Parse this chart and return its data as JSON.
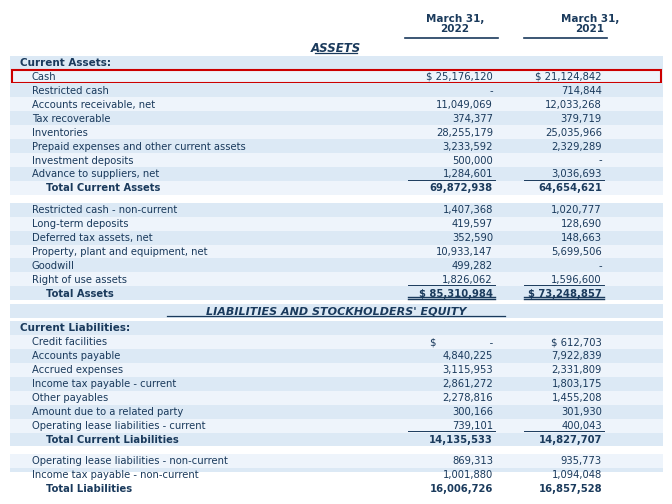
{
  "title_assets": "ASSETS",
  "title_liabilities": "LIABILITIES AND STOCKHOLDERS' EQUITY",
  "col_headers": [
    "March 31,\n2022",
    "March 31,\n2021"
  ],
  "text_color": "#1a3a5c",
  "cash_box_color": "#cc0000",
  "bg_light": "#dce9f5",
  "bg_white": "#eef4fb",
  "sections": [
    {
      "section_label": "Current Assets:",
      "rows": [
        {
          "label": "Cash",
          "v2022": "$ 25,176,120",
          "v2021": "$ 21,124,842",
          "highlight": true
        },
        {
          "label": "Restricted cash",
          "v2022": "-",
          "v2021": "714,844"
        },
        {
          "label": "Accounts receivable, net",
          "v2022": "11,049,069",
          "v2021": "12,033,268"
        },
        {
          "label": "Tax recoverable",
          "v2022": "374,377",
          "v2021": "379,719"
        },
        {
          "label": "Inventories",
          "v2022": "28,255,179",
          "v2021": "25,035,966"
        },
        {
          "label": "Prepaid expenses and other current assets",
          "v2022": "3,233,592",
          "v2021": "2,329,289"
        },
        {
          "label": "Investment deposits",
          "v2022": "500,000",
          "v2021": "-"
        },
        {
          "label": "Advance to suppliers, net",
          "v2022": "1,284,601",
          "v2021": "3,036,693",
          "underline": true
        },
        {
          "label": "    Total Current Assets",
          "v2022": "69,872,938",
          "v2021": "64,654,621",
          "bold": true
        }
      ]
    },
    {
      "section_label": "",
      "rows": [
        {
          "label": "Restricted cash - non-current",
          "v2022": "1,407,368",
          "v2021": "1,020,777"
        },
        {
          "label": "Long-term deposits",
          "v2022": "419,597",
          "v2021": "128,690"
        },
        {
          "label": "Deferred tax assets, net",
          "v2022": "352,590",
          "v2021": "148,663"
        },
        {
          "label": "Property, plant and equipment, net",
          "v2022": "10,933,147",
          "v2021": "5,699,506"
        },
        {
          "label": "Goodwill",
          "v2022": "499,282",
          "v2021": "-"
        },
        {
          "label": "Right of use assets",
          "v2022": "1,826,062",
          "v2021": "1,596,600",
          "underline": true
        },
        {
          "label": "    Total Assets",
          "v2022": "$ 85,310,984",
          "v2021": "$ 73,248,857",
          "bold": true,
          "double_underline": true
        }
      ]
    }
  ],
  "liab_sections": [
    {
      "section_label": "Current Liabilities:",
      "rows": [
        {
          "label": "Credit facilities",
          "v2022": "$                 -",
          "v2021": "$ 612,703"
        },
        {
          "label": "Accounts payable",
          "v2022": "4,840,225",
          "v2021": "7,922,839"
        },
        {
          "label": "Accrued expenses",
          "v2022": "3,115,953",
          "v2021": "2,331,809"
        },
        {
          "label": "Income tax payable - current",
          "v2022": "2,861,272",
          "v2021": "1,803,175"
        },
        {
          "label": "Other payables",
          "v2022": "2,278,816",
          "v2021": "1,455,208"
        },
        {
          "label": "Amount due to a related party",
          "v2022": "300,166",
          "v2021": "301,930"
        },
        {
          "label": "Operating lease liabilities - current",
          "v2022": "739,101",
          "v2021": "400,043",
          "underline": true
        },
        {
          "label": "    Total Current Liabilities",
          "v2022": "14,135,533",
          "v2021": "14,827,707",
          "bold": true
        }
      ]
    },
    {
      "section_label": "",
      "rows": [
        {
          "label": "Operating lease liabilities - non-current",
          "v2022": "869,313",
          "v2021": "935,773"
        },
        {
          "label": "Income tax payable - non-current",
          "v2022": "1,001,880",
          "v2021": "1,094,048",
          "underline": true
        },
        {
          "label": "    Total Liabilities",
          "v2022": "16,006,726",
          "v2021": "16,857,528",
          "bold": true,
          "double_underline": true
        }
      ]
    }
  ]
}
